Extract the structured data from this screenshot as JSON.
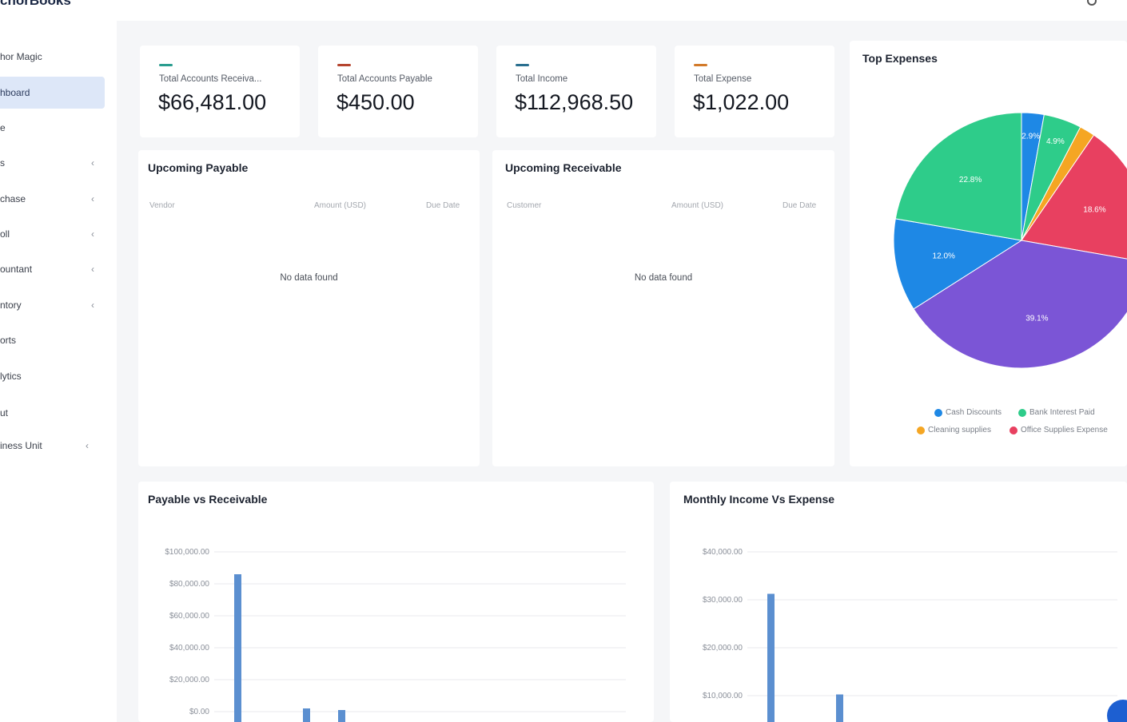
{
  "sidebar": {
    "brand": "chorBooks",
    "items": [
      {
        "label": "hor Magic",
        "chevron": false
      },
      {
        "label": "hboard",
        "chevron": false,
        "active": true
      },
      {
        "label": "e",
        "chevron": false
      },
      {
        "label": "s",
        "chevron": true
      },
      {
        "label": "chase",
        "chevron": true
      },
      {
        "label": "oll",
        "chevron": true
      },
      {
        "label": "ountant",
        "chevron": true
      },
      {
        "label": "ntory",
        "chevron": true
      },
      {
        "label": "orts",
        "chevron": false
      },
      {
        "label": "lytics",
        "chevron": false
      },
      {
        "label": "ut",
        "chevron": false
      },
      {
        "label": "iness Unit",
        "chevron": true
      }
    ]
  },
  "stats": [
    {
      "label": "Total Accounts Receiva...",
      "value": "$66,481.00",
      "color": "#2a9d8f"
    },
    {
      "label": "Total Accounts Payable",
      "value": "$450.00",
      "color": "#b5452f"
    },
    {
      "label": "Total Income",
      "value": "$112,968.50",
      "color": "#2a6f8f"
    },
    {
      "label": "Total Expense",
      "value": "$1,022.00",
      "color": "#d27a2a"
    }
  ],
  "upcoming_payable": {
    "title": "Upcoming Payable",
    "columns": [
      "Vendor",
      "Amount (USD)",
      "Due Date"
    ],
    "empty_text": "No data found"
  },
  "upcoming_receivable": {
    "title": "Upcoming Receivable",
    "columns": [
      "Customer",
      "Amount (USD)",
      "Due Date"
    ],
    "empty_text": "No data found"
  },
  "top_expenses": {
    "title": "Top Expenses",
    "legend": [
      {
        "label": "Cash Discounts",
        "color": "#1e88e5"
      },
      {
        "label": "Bank Interest Paid",
        "color": "#2ecc8a"
      },
      {
        "label": "Cleaning supplies",
        "color": "#f5a623"
      },
      {
        "label": "Office Supplies Expense",
        "color": "#e84060"
      }
    ]
  },
  "chart_data": [
    {
      "type": "pie",
      "title": "Top Expenses",
      "slices": [
        {
          "label": "2.9%",
          "value": 2.9,
          "color": "#1e88e5"
        },
        {
          "label": "4.9%",
          "value": 4.9,
          "color": "#2ecc8a"
        },
        {
          "label": "",
          "value": 2.0,
          "color": "#f5a623"
        },
        {
          "label": "18.6%",
          "value": 18.6,
          "color": "#e84060"
        },
        {
          "label": "39.1%",
          "value": 39.1,
          "color": "#7b55d6"
        },
        {
          "label": "12.0%",
          "value": 12.0,
          "color": "#1e88e5"
        },
        {
          "label": "22.8%",
          "value": 22.8,
          "color": "#2ecc8a"
        }
      ]
    },
    {
      "type": "bar",
      "title": "Payable vs Receivable",
      "yticks": [
        "$100,000.00",
        "$80,000.00",
        "$60,000.00",
        "$40,000.00",
        "$20,000.00",
        "$0.00"
      ],
      "ylim": [
        0,
        100000
      ],
      "values": [
        86000,
        2000,
        600
      ]
    },
    {
      "type": "bar",
      "title": "Monthly Income Vs Expense",
      "yticks": [
        "$40,000.00",
        "$30,000.00",
        "$20,000.00",
        "$10,000.00"
      ],
      "ylim": [
        0,
        40000
      ],
      "values": [
        30000,
        6000
      ]
    }
  ],
  "payable_vs_receivable": {
    "title": "Payable vs Receivable"
  },
  "monthly_income_expense": {
    "title": "Monthly Income Vs Expense"
  }
}
